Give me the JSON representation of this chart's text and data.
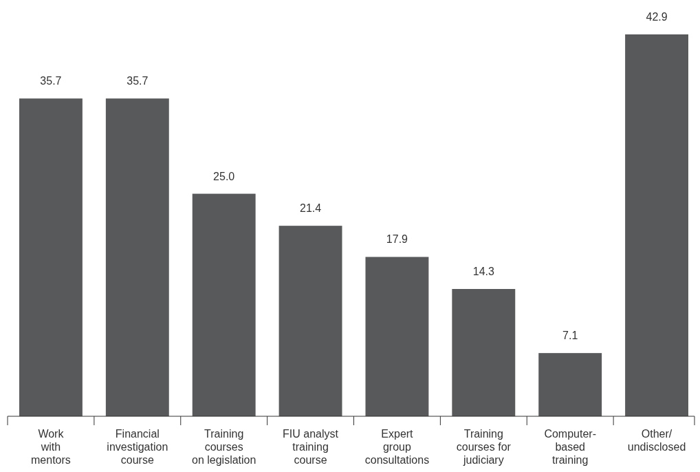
{
  "chart_data": {
    "type": "bar",
    "categories": [
      "Work\nwith\nmentors",
      "Financial\ninvestigation\ncourse",
      "Training\ncourses\non legislation",
      "FIU analyst\ntraining\ncourse",
      "Expert\ngroup\nconsultations",
      "Training\ncourses for\njudiciary",
      "Computer-\nbased\ntraining",
      "Other/\nundisclosed"
    ],
    "values": [
      35.7,
      35.7,
      25.0,
      21.4,
      17.9,
      14.3,
      7.1,
      42.9
    ],
    "color": "#58595b",
    "value_labels": [
      "35.7",
      "35.7",
      "25.0",
      "21.4",
      "17.9",
      "14.3",
      "7.1",
      "42.9"
    ]
  }
}
